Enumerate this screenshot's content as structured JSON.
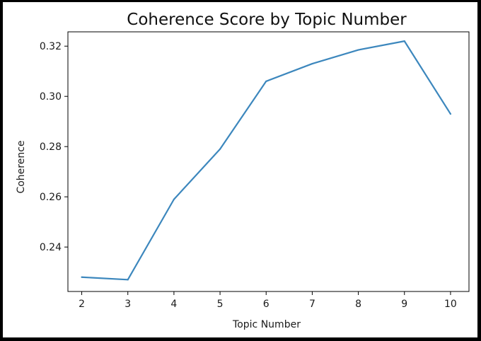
{
  "chart_data": {
    "type": "line",
    "title": "Coherence Score by Topic Number",
    "xlabel": "Topic Number",
    "ylabel": "Coherence",
    "x": [
      2,
      3,
      4,
      5,
      6,
      7,
      8,
      9,
      10
    ],
    "series": [
      {
        "values": [
          0.228,
          0.227,
          0.259,
          0.279,
          0.306,
          0.313,
          0.3185,
          0.322,
          0.293
        ],
        "color": "#3c87bd"
      }
    ],
    "x_ticks": [
      "2",
      "3",
      "4",
      "5",
      "6",
      "7",
      "8",
      "9",
      "10"
    ],
    "y_ticks": [
      {
        "value": 0.24,
        "label": "0.24"
      },
      {
        "value": 0.26,
        "label": "0.26"
      },
      {
        "value": 0.28,
        "label": "0.28"
      },
      {
        "value": 0.3,
        "label": "0.30"
      },
      {
        "value": 0.32,
        "label": "0.32"
      }
    ],
    "xlim": [
      1.7,
      10.4
    ],
    "ylim": [
      0.2223,
      0.3257
    ],
    "grid": false,
    "legend": "none"
  }
}
